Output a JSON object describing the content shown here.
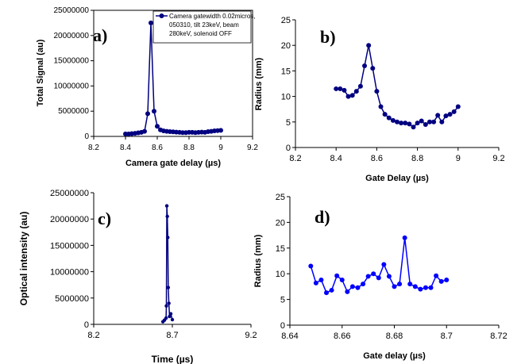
{
  "chart_data": [
    {
      "type": "line",
      "panel_label": "a)",
      "xlabel": "Camera gate delay (µs)",
      "ylabel": "Total Signal (au)",
      "xlim": [
        8.2,
        9.2
      ],
      "ylim": [
        0,
        25000000
      ],
      "xticks": [
        "8.2",
        "8.4",
        "8.6",
        "8.8",
        "9",
        "9.2"
      ],
      "yticks": [
        "0",
        "5000000",
        "10000000",
        "15000000",
        "20000000",
        "25000000"
      ],
      "legend_position": "top-right",
      "legend_lines": [
        "Camera gatewidth 0.02micros,",
        "050310, tilt 23keV, beam",
        "280keV, solenoid OFF"
      ],
      "color": "#000080",
      "series": [
        {
          "name": "Camera gatewidth 0.02micros, 050310, tilt 23keV, beam 280keV, solenoid OFF",
          "x": [
            8.4,
            8.42,
            8.44,
            8.46,
            8.48,
            8.5,
            8.52,
            8.54,
            8.56,
            8.58,
            8.6,
            8.62,
            8.64,
            8.66,
            8.68,
            8.7,
            8.72,
            8.74,
            8.76,
            8.78,
            8.8,
            8.82,
            8.84,
            8.86,
            8.88,
            8.9,
            8.92,
            8.94,
            8.96,
            8.98,
            9.0
          ],
          "y": [
            500000,
            500000,
            550000,
            600000,
            700000,
            800000,
            1000000,
            4500000,
            22500000,
            5000000,
            2000000,
            1300000,
            1100000,
            1000000,
            950000,
            900000,
            850000,
            800000,
            750000,
            750000,
            800000,
            800000,
            750000,
            800000,
            850000,
            800000,
            950000,
            1000000,
            1100000,
            1150000,
            1200000
          ]
        }
      ]
    },
    {
      "type": "line",
      "panel_label": "b)",
      "xlabel": "Gate Delay (µs)",
      "ylabel": "Radius (mm)",
      "xlim": [
        8.2,
        9.2
      ],
      "ylim": [
        0,
        25
      ],
      "xticks": [
        "8.2",
        "8.4",
        "8.6",
        "8.8",
        "9",
        "9.2"
      ],
      "yticks": [
        "0",
        "5",
        "10",
        "15",
        "20",
        "25"
      ],
      "color": "#000080",
      "series": [
        {
          "x": [
            8.4,
            8.42,
            8.44,
            8.46,
            8.48,
            8.5,
            8.52,
            8.54,
            8.56,
            8.58,
            8.6,
            8.62,
            8.64,
            8.66,
            8.68,
            8.7,
            8.72,
            8.74,
            8.76,
            8.78,
            8.8,
            8.82,
            8.84,
            8.86,
            8.88,
            8.9,
            8.92,
            8.94,
            8.96,
            8.98,
            9.0
          ],
          "y": [
            11.5,
            11.5,
            11.2,
            10.0,
            10.2,
            11.0,
            12.0,
            16.0,
            20.0,
            15.5,
            11.0,
            8.0,
            6.5,
            5.8,
            5.3,
            5.0,
            4.8,
            4.8,
            4.6,
            4.0,
            4.8,
            5.2,
            4.5,
            5.0,
            5.0,
            6.3,
            5.0,
            6.2,
            6.5,
            7.0,
            8.0
          ]
        }
      ]
    },
    {
      "type": "line",
      "panel_label": "c)",
      "xlabel": "Time (µs)",
      "ylabel": "Optical intensity (au)",
      "xlim": [
        8.2,
        9.2
      ],
      "ylim": [
        0,
        25000000
      ],
      "xticks": [
        "8.2",
        "8.7",
        "9.2"
      ],
      "yticks": [
        "0",
        "5000000",
        "10000000",
        "15000000",
        "20000000",
        "25000000"
      ],
      "color": "#000080",
      "series": [
        {
          "x": [
            8.64,
            8.65,
            8.66,
            8.662,
            8.665,
            8.668,
            8.671,
            8.674,
            8.678,
            8.682,
            8.69,
            8.7
          ],
          "y": [
            500000,
            800000,
            1200000,
            3500000,
            22500000,
            20500000,
            16500000,
            7000000,
            4000000,
            1500000,
            2000000,
            900000
          ]
        }
      ]
    },
    {
      "type": "line",
      "panel_label": "d)",
      "xlabel": "Gate delay (µs)",
      "ylabel": "Radius (mm)",
      "xlim": [
        8.64,
        8.72
      ],
      "ylim": [
        0,
        25
      ],
      "xticks": [
        "8.64",
        "8.66",
        "8.68",
        "8.7",
        "8.72"
      ],
      "yticks": [
        "0",
        "5",
        "10",
        "15",
        "20",
        "25"
      ],
      "color": "#0000ff",
      "series": [
        {
          "x": [
            8.648,
            8.65,
            8.652,
            8.654,
            8.656,
            8.658,
            8.66,
            8.662,
            8.664,
            8.666,
            8.668,
            8.67,
            8.672,
            8.674,
            8.676,
            8.678,
            8.68,
            8.682,
            8.684,
            8.686,
            8.688,
            8.69,
            8.692,
            8.694,
            8.696,
            8.698,
            8.7
          ],
          "y": [
            11.5,
            8.2,
            8.8,
            6.3,
            6.8,
            9.6,
            8.8,
            6.5,
            7.5,
            7.3,
            8.0,
            9.5,
            10.0,
            9.2,
            11.8,
            9.5,
            7.5,
            8.0,
            17.0,
            8.0,
            7.5,
            7.0,
            7.3,
            7.3,
            9.6,
            8.5,
            8.8
          ]
        }
      ]
    }
  ]
}
